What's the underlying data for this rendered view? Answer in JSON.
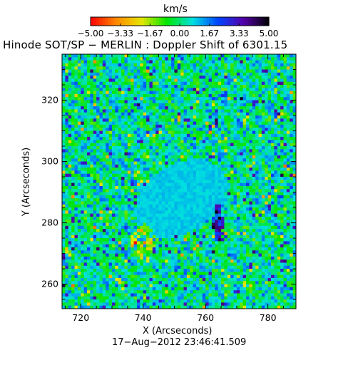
{
  "colorbar": {
    "label": "km/s",
    "ticks": [
      "−5.00",
      "−3.33",
      "−1.67",
      "0.00",
      "1.67",
      "3.33",
      "5.00"
    ],
    "range": [
      -5.0,
      5.0
    ],
    "colors": [
      "#ff0000",
      "#ff8800",
      "#e6e600",
      "#00e600",
      "#00e0e0",
      "#0044ff",
      "#5500aa",
      "#000000"
    ]
  },
  "title": "Hinode SOT/SP − MERLIN : Doppler Shift of 6301.15",
  "date_label": "17−Aug−2012 23:46:41.509",
  "chart_data": {
    "type": "heatmap",
    "title": "Hinode SOT/SP − MERLIN : Doppler Shift of 6301.15",
    "xlabel": "X (Arcseconds)",
    "ylabel": "Y (Arcseconds)",
    "xlim": [
      714,
      789
    ],
    "ylim": [
      252,
      335
    ],
    "x_ticks": [
      720,
      740,
      760,
      780
    ],
    "y_ticks": [
      260,
      280,
      300,
      320
    ],
    "x_tick_labels": [
      "720",
      "740",
      "760",
      "780"
    ],
    "y_tick_labels": [
      "260",
      "280",
      "300",
      "320"
    ],
    "value_range": [
      -5.0,
      5.0
    ],
    "units": "km/s",
    "features": {
      "sunspot_center": [
        752,
        288
      ],
      "background_mean": 0.3,
      "blue_patch_center": [
        764,
        280
      ],
      "red_patch_center": [
        740,
        274
      ]
    }
  }
}
